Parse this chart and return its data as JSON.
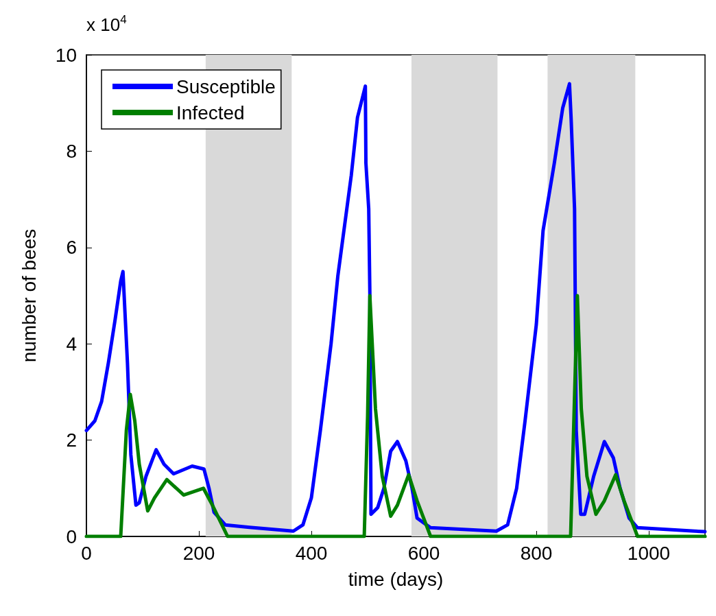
{
  "chart_data": {
    "type": "line",
    "xlabel": "time (days)",
    "ylabel": "number of bees",
    "annotations": [
      "x 10$^{4}$"
    ],
    "xlim": [
      0,
      1100
    ],
    "xticks": [
      0,
      200,
      400,
      600,
      800,
      1000
    ],
    "ylim": [
      0,
      10
    ],
    "yticks": [
      0,
      2,
      4,
      6,
      8,
      10
    ],
    "grid": false,
    "legend": "top left",
    "marker": "none",
    "line_style": "solid",
    "bands": [
      {
        "axis": "x",
        "from": 212,
        "to": 365,
        "color": "#d9d9d9"
      },
      {
        "axis": "x",
        "from": 578,
        "to": 731,
        "color": "#d9d9d9"
      },
      {
        "axis": "x",
        "from": 820,
        "to": 976,
        "color": "#d9d9d9"
      }
    ],
    "series": [
      {
        "name": "Susceptible",
        "color": "#0000ff",
        "x": [
          0,
          15,
          27,
          39,
          51,
          61,
          65,
          73,
          79,
          88,
          94,
          106,
          124,
          138,
          155,
          188,
          209,
          218,
          227,
          247,
          290,
          368,
          385,
          400,
          416,
          435,
          447,
          471,
          482,
          496,
          497,
          502,
          504,
          506,
          518,
          529,
          541,
          553,
          568,
          579,
          588,
          612,
          729,
          749,
          765,
          780,
          800,
          812,
          832,
          847,
          859,
          862,
          868,
          871,
          879,
          886,
          902,
          921,
          937,
          949,
          965,
          980,
          1082,
          1100
        ],
        "values": [
          2.2,
          2.4,
          2.8,
          3.6,
          4.5,
          5.3,
          5.5,
          3.6,
          1.7,
          0.65,
          0.7,
          1.25,
          1.8,
          1.5,
          1.3,
          1.46,
          1.4,
          1.0,
          0.5,
          0.24,
          0.19,
          0.11,
          0.24,
          0.8,
          2.2,
          4.0,
          5.4,
          7.5,
          8.7,
          9.35,
          7.75,
          6.8,
          5.05,
          0.46,
          0.6,
          1.0,
          1.77,
          1.97,
          1.57,
          1.0,
          0.38,
          0.18,
          0.11,
          0.24,
          1.0,
          2.4,
          4.4,
          6.35,
          7.75,
          8.9,
          9.4,
          8.65,
          6.8,
          2.2,
          0.46,
          0.46,
          1.25,
          1.97,
          1.63,
          1.0,
          0.38,
          0.18,
          0.11,
          0.1
        ]
      },
      {
        "name": "Infected",
        "color": "#007f00",
        "x": [
          0,
          61,
          71,
          78,
          86,
          94,
          109,
          121,
          143,
          173,
          208,
          224,
          251,
          494,
          500,
          504,
          514,
          526,
          541,
          553,
          573,
          588,
          612,
          861,
          867,
          873,
          880,
          890,
          906,
          921,
          941,
          956,
          980,
          1100
        ],
        "values": [
          0,
          0,
          2.2,
          2.95,
          2.4,
          1.5,
          0.53,
          0.8,
          1.18,
          0.86,
          1.0,
          0.65,
          0,
          0,
          2.5,
          5.0,
          2.65,
          1.25,
          0.42,
          0.65,
          1.28,
          0.74,
          0,
          0,
          2.5,
          5.0,
          2.65,
          1.25,
          0.46,
          0.74,
          1.28,
          0.74,
          0,
          0
        ]
      }
    ]
  }
}
